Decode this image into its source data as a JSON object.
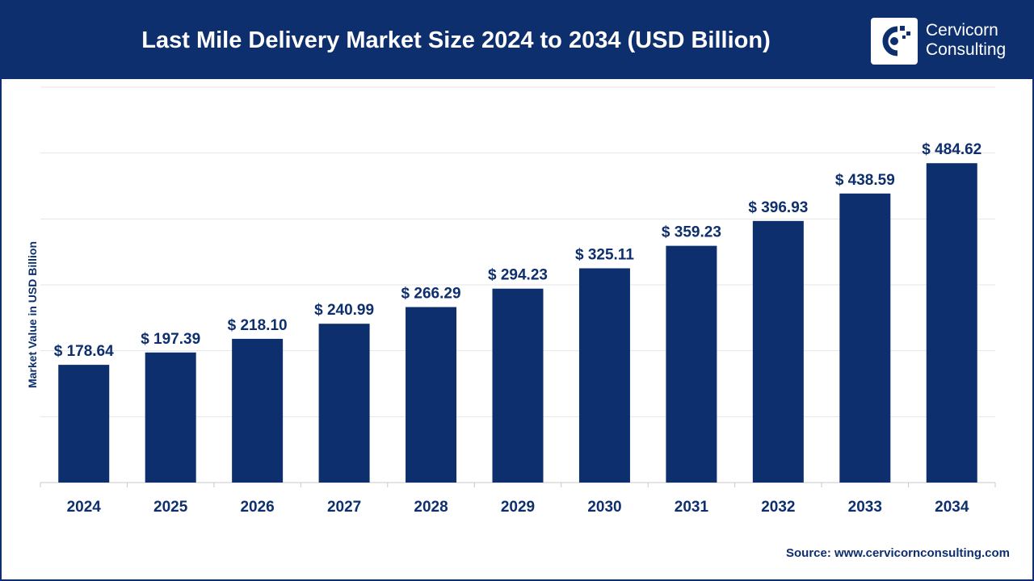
{
  "header": {
    "title": "Last Mile Delivery Market Size 2024 to 2034 (USD Billion)",
    "logo": {
      "line1": "Cervicorn",
      "line2": "Consulting",
      "icon": "cervicorn-logo-icon"
    }
  },
  "colors": {
    "brand": "#0d2f6e",
    "bar": "#0d2f6e",
    "background": "#ffffff",
    "grid": "#e6e6e6"
  },
  "chart_data": {
    "type": "bar",
    "title": "",
    "xlabel": "",
    "ylabel": "Market Value in USD Billion",
    "categories": [
      "2024",
      "2025",
      "2026",
      "2027",
      "2028",
      "2029",
      "2030",
      "2031",
      "2032",
      "2033",
      "2034"
    ],
    "values": [
      178.64,
      197.39,
      218.1,
      240.99,
      266.29,
      294.23,
      325.11,
      359.23,
      396.93,
      438.59,
      484.62
    ],
    "value_labels": [
      "$ 178.64",
      "$ 197.39",
      "$ 218.10",
      "$ 240.99",
      "$ 266.29",
      "$ 294.23",
      "$ 325.11",
      "$ 359.23",
      "$ 396.93",
      "$ 438.59",
      "$ 484.62"
    ],
    "ylim": [
      0,
      600
    ],
    "grid": true,
    "legend": "none"
  },
  "footer": {
    "source": "Source: www.cervicornconsulting.com"
  }
}
